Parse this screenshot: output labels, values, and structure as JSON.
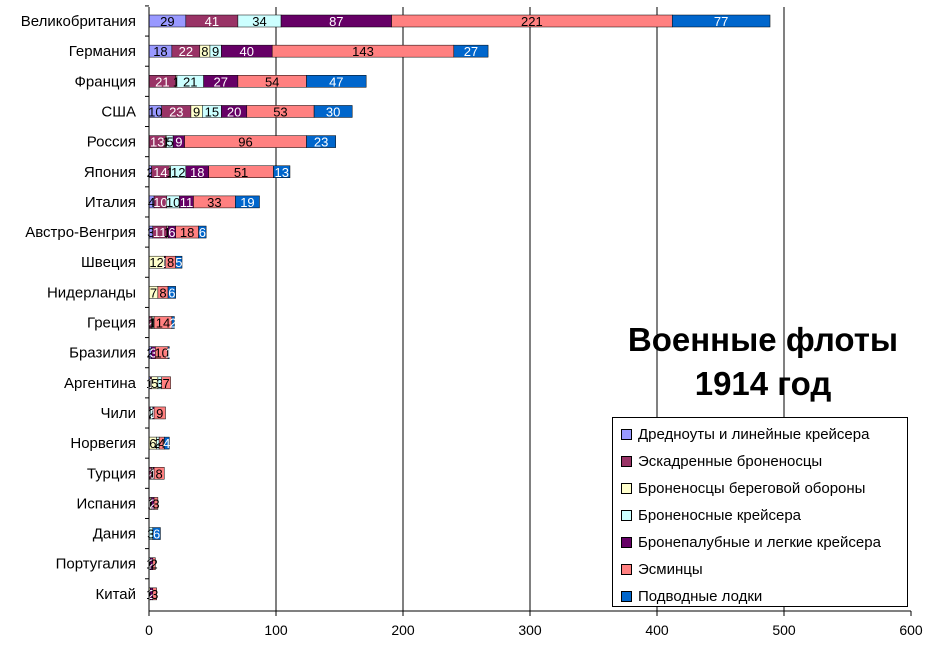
{
  "chart_data": {
    "type": "bar",
    "orientation": "horizontal",
    "stacked": true,
    "title": "Военные флоты 1914 год",
    "title_lines": [
      "Военные флоты",
      "1914 год"
    ],
    "xlim": [
      0,
      600
    ],
    "xticks": [
      0,
      100,
      200,
      300,
      400,
      500,
      600
    ],
    "grid": "vertical",
    "legend_position": "bottom-right",
    "categories": [
      "Великобритания",
      "Германия",
      "Франция",
      "США",
      "Россия",
      "Япония",
      "Италия",
      "Австро-Венгрия",
      "Швеция",
      "Нидерланды",
      "Греция",
      "Бразилия",
      "Аргентина",
      "Чили",
      "Норвегия",
      "Турция",
      "Испания",
      "Дания",
      "Португалия",
      "Китай"
    ],
    "series": [
      {
        "name": "Дредноуты и линейные крейсера",
        "color": "#9999ff",
        "values": [
          29,
          18,
          0,
          10,
          0,
          2,
          4,
          3,
          0,
          0,
          0,
          2,
          1,
          0,
          0,
          0,
          0,
          0,
          0,
          0
        ]
      },
      {
        "name": "Эскадренные броненосцы",
        "color": "#993366",
        "values": [
          41,
          22,
          21,
          23,
          13,
          14,
          10,
          11,
          0,
          0,
          2,
          0,
          1,
          1,
          0,
          2,
          1,
          0,
          0,
          0
        ]
      },
      {
        "name": "Броненосцы береговой обороны",
        "color": "#ffffcc",
        "values": [
          0,
          8,
          1,
          9,
          1,
          1,
          0,
          1,
          12,
          7,
          1,
          0,
          5,
          0,
          6,
          1,
          1,
          0,
          0,
          1
        ]
      },
      {
        "name": "Броненосные крейсера",
        "color": "#ccffff",
        "values": [
          34,
          9,
          21,
          15,
          5,
          12,
          10,
          0,
          0,
          0,
          1,
          0,
          3,
          2,
          2,
          0,
          0,
          3,
          1,
          0
        ]
      },
      {
        "name": "Бронепалубные и легкие крейсера",
        "color": "#660066",
        "values": [
          87,
          40,
          27,
          20,
          9,
          18,
          11,
          6,
          1,
          0,
          0,
          3,
          0,
          1,
          0,
          1,
          2,
          0,
          2,
          2
        ]
      },
      {
        "name": "Эсминцы",
        "color": "#ff8080",
        "values": [
          221,
          143,
          54,
          53,
          96,
          51,
          33,
          18,
          8,
          8,
          14,
          10,
          7,
          9,
          4,
          8,
          3,
          0,
          2,
          3
        ]
      },
      {
        "name": "Подводные лодки",
        "color": "#0066cc",
        "values": [
          77,
          27,
          47,
          30,
          23,
          13,
          19,
          6,
          5,
          6,
          2,
          1,
          0,
          0,
          4,
          0,
          0,
          6,
          0,
          0
        ]
      }
    ],
    "labels": [
      [
        "29",
        "41",
        "",
        "34",
        "87",
        "221",
        "77"
      ],
      [
        "18",
        "22",
        "8",
        "9",
        "40",
        "143",
        "27"
      ],
      [
        "",
        "21",
        "1",
        "21",
        "27",
        "54",
        "47"
      ],
      [
        "10",
        "23",
        "9",
        "15",
        "20",
        "53",
        "30"
      ],
      [
        "",
        "13",
        "1",
        "5",
        "9",
        "96",
        "23"
      ],
      [
        "2",
        "14",
        "1",
        "12",
        "18",
        "51",
        "13"
      ],
      [
        "4",
        "10",
        "",
        "10",
        "11",
        "33",
        "19"
      ],
      [
        "3",
        "11",
        "1",
        "",
        "6",
        "18",
        "6"
      ],
      [
        "",
        "",
        "12",
        "",
        "1",
        "8",
        "5"
      ],
      [
        "",
        "",
        "7",
        "",
        "",
        "8",
        "6"
      ],
      [
        "",
        "2",
        "1",
        "1",
        "",
        "14",
        "2"
      ],
      [
        "2",
        "",
        "",
        "",
        "3",
        "10",
        "1"
      ],
      [
        "1",
        "1",
        "5",
        "3",
        "",
        "7",
        ""
      ],
      [
        "",
        "1",
        "",
        "2",
        "1",
        "9",
        ""
      ],
      [
        "",
        "",
        "6",
        "2",
        "",
        "4",
        "4"
      ],
      [
        "",
        "2",
        "1",
        "",
        "1",
        "8",
        ""
      ],
      [
        "",
        "1",
        "1",
        "",
        "2",
        "3",
        ""
      ],
      [
        "",
        "",
        "",
        "3",
        "",
        "",
        "6"
      ],
      [
        "",
        "",
        "",
        "1",
        "2",
        "2",
        ""
      ],
      [
        "",
        "",
        "1",
        "",
        "2",
        "3",
        ""
      ]
    ]
  }
}
